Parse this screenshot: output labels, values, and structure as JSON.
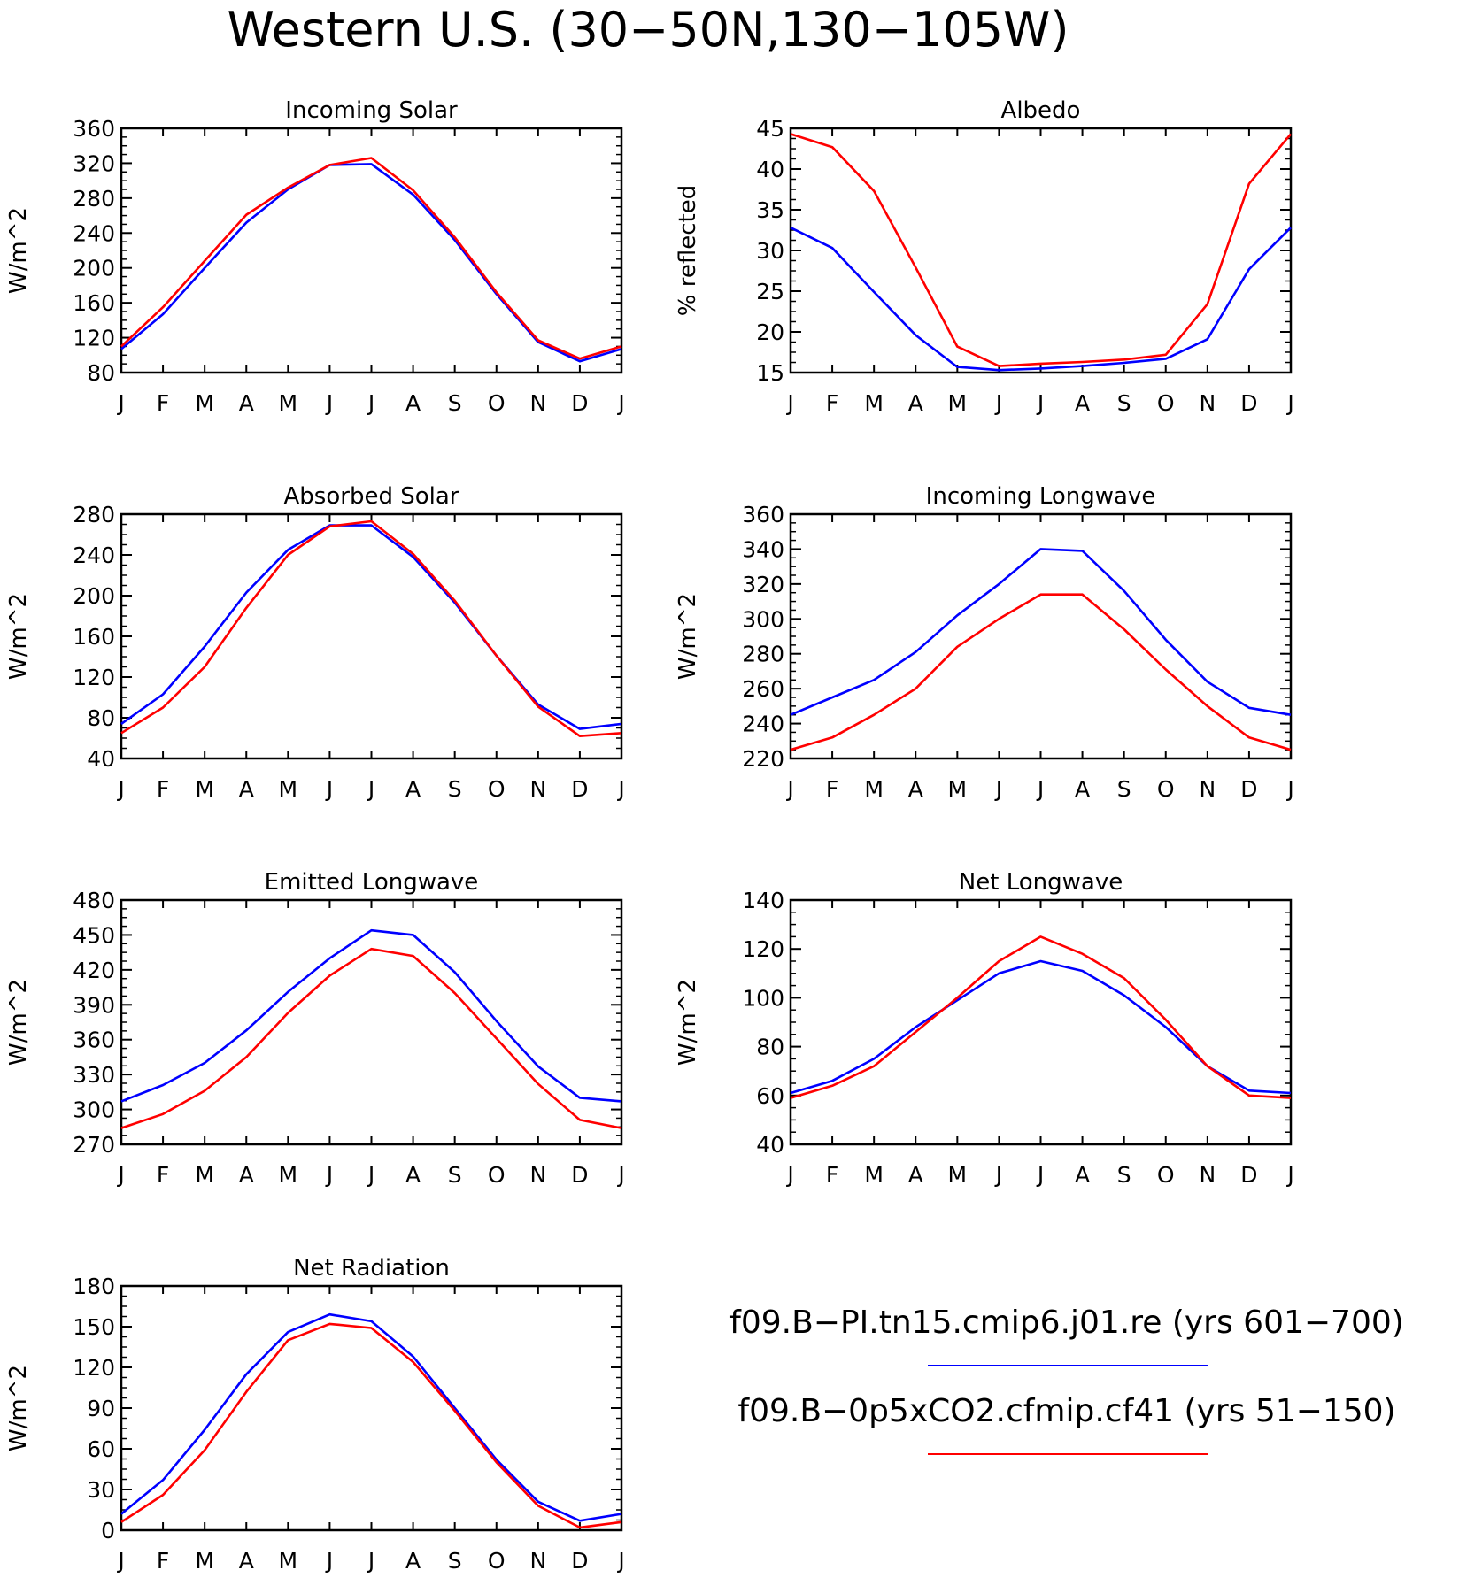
{
  "title": "Western U.S. (30−50N,130−105W)",
  "colors": {
    "series1": "#0000ff",
    "series2": "#ff0000",
    "axes": "#000000"
  },
  "legend": {
    "entries": [
      {
        "label": "f09.B−PI.tn15.cmip6.j01.re (yrs 601−700)",
        "color": "#0000ff"
      },
      {
        "label": "f09.B−0p5xCO2.cfmip.cf41 (yrs 51−150)",
        "color": "#ff0000"
      }
    ]
  },
  "chart_data": [
    {
      "type": "line",
      "title": "Incoming Solar",
      "xlabel": "",
      "ylabel": "W/m^2",
      "categories": [
        "J",
        "F",
        "M",
        "A",
        "M",
        "J",
        "J",
        "A",
        "S",
        "O",
        "N",
        "D",
        "J"
      ],
      "ylim": [
        80,
        360
      ],
      "yticks": [
        80,
        120,
        160,
        200,
        240,
        280,
        320,
        360
      ],
      "series": [
        {
          "color": "#0000ff",
          "values": [
            107,
            147,
            200,
            252,
            290,
            318,
            319,
            284,
            232,
            170,
            115,
            93,
            107
          ]
        },
        {
          "color": "#ff0000",
          "values": [
            110,
            155,
            208,
            261,
            292,
            318,
            326,
            289,
            235,
            172,
            117,
            96,
            110
          ]
        }
      ]
    },
    {
      "type": "line",
      "title": "Albedo",
      "xlabel": "",
      "ylabel": "% reflected",
      "categories": [
        "J",
        "F",
        "M",
        "A",
        "M",
        "J",
        "J",
        "A",
        "S",
        "O",
        "N",
        "D",
        "J"
      ],
      "ylim": [
        15,
        45
      ],
      "yticks": [
        15,
        20,
        25,
        30,
        35,
        40,
        45
      ],
      "series": [
        {
          "color": "#0000ff",
          "values": [
            32.8,
            30.3,
            24.9,
            19.6,
            15.7,
            15.3,
            15.5,
            15.8,
            16.2,
            16.7,
            19.1,
            27.7,
            32.8
          ]
        },
        {
          "color": "#ff0000",
          "values": [
            44.3,
            42.7,
            37.3,
            27.9,
            18.2,
            15.8,
            16.1,
            16.3,
            16.6,
            17.2,
            23.4,
            38.2,
            44.3
          ]
        }
      ]
    },
    {
      "type": "line",
      "title": "Absorbed Solar",
      "xlabel": "",
      "ylabel": "W/m^2",
      "categories": [
        "J",
        "F",
        "M",
        "A",
        "M",
        "J",
        "J",
        "A",
        "S",
        "O",
        "N",
        "D",
        "J"
      ],
      "ylim": [
        40,
        280
      ],
      "yticks": [
        40,
        80,
        120,
        160,
        200,
        240,
        280
      ],
      "series": [
        {
          "color": "#0000ff",
          "values": [
            74,
            103,
            150,
            203,
            245,
            269,
            269,
            238,
            193,
            141,
            93,
            69,
            74
          ]
        },
        {
          "color": "#ff0000",
          "values": [
            65,
            90,
            130,
            188,
            240,
            268,
            273,
            241,
            195,
            141,
            91,
            62,
            65
          ]
        }
      ]
    },
    {
      "type": "line",
      "title": "Incoming Longwave",
      "xlabel": "",
      "ylabel": "W/m^2",
      "categories": [
        "J",
        "F",
        "M",
        "A",
        "M",
        "J",
        "J",
        "A",
        "S",
        "O",
        "N",
        "D",
        "J"
      ],
      "ylim": [
        220,
        360
      ],
      "yticks": [
        220,
        240,
        260,
        280,
        300,
        320,
        340,
        360
      ],
      "series": [
        {
          "color": "#0000ff",
          "values": [
            245,
            255,
            265,
            281,
            302,
            320,
            340,
            339,
            316,
            288,
            264,
            249,
            245
          ]
        },
        {
          "color": "#ff0000",
          "values": [
            225,
            232,
            245,
            260,
            284,
            300,
            314,
            314,
            294,
            271,
            250,
            232,
            225
          ]
        }
      ]
    },
    {
      "type": "line",
      "title": "Emitted Longwave",
      "xlabel": "",
      "ylabel": "W/m^2",
      "categories": [
        "J",
        "F",
        "M",
        "A",
        "M",
        "J",
        "J",
        "A",
        "S",
        "O",
        "N",
        "D",
        "J"
      ],
      "ylim": [
        270,
        480
      ],
      "yticks": [
        270,
        300,
        330,
        360,
        390,
        420,
        450,
        480
      ],
      "series": [
        {
          "color": "#0000ff",
          "values": [
            307,
            321,
            340,
            368,
            401,
            430,
            454,
            450,
            418,
            376,
            337,
            310,
            307
          ]
        },
        {
          "color": "#ff0000",
          "values": [
            284,
            296,
            316,
            345,
            383,
            415,
            438,
            432,
            400,
            361,
            322,
            291,
            284
          ]
        }
      ]
    },
    {
      "type": "line",
      "title": "Net Longwave",
      "xlabel": "",
      "ylabel": "W/m^2",
      "categories": [
        "J",
        "F",
        "M",
        "A",
        "M",
        "J",
        "J",
        "A",
        "S",
        "O",
        "N",
        "D",
        "J"
      ],
      "ylim": [
        40,
        140
      ],
      "yticks": [
        40,
        60,
        80,
        100,
        120,
        140
      ],
      "series": [
        {
          "color": "#0000ff",
          "values": [
            61,
            66,
            75,
            88,
            99,
            110,
            115,
            111,
            101,
            88,
            72,
            62,
            61
          ]
        },
        {
          "color": "#ff0000",
          "values": [
            59,
            64,
            72,
            86,
            100,
            115,
            125,
            118,
            108,
            91,
            72,
            60,
            59
          ]
        }
      ]
    },
    {
      "type": "line",
      "title": "Net Radiation",
      "xlabel": "",
      "ylabel": "W/m^2",
      "categories": [
        "J",
        "F",
        "M",
        "A",
        "M",
        "J",
        "J",
        "A",
        "S",
        "O",
        "N",
        "D",
        "J"
      ],
      "ylim": [
        0,
        180
      ],
      "yticks": [
        0,
        30,
        60,
        90,
        120,
        150,
        180
      ],
      "series": [
        {
          "color": "#0000ff",
          "values": [
            12,
            37,
            74,
            115,
            146,
            159,
            154,
            128,
            90,
            52,
            21,
            7,
            12
          ]
        },
        {
          "color": "#ff0000",
          "values": [
            6,
            26,
            59,
            102,
            140,
            152,
            149,
            124,
            88,
            50,
            18,
            2,
            6
          ]
        }
      ]
    }
  ]
}
